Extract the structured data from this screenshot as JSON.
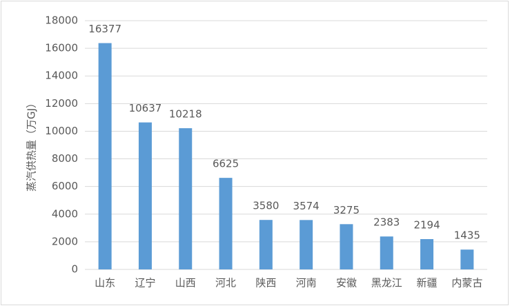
{
  "chart_data": {
    "type": "bar",
    "ylabel": "蒸汽供热量（万GJ）",
    "categories": [
      "山东",
      "辽宁",
      "山西",
      "河北",
      "陕西",
      "河南",
      "安徽",
      "黑龙江",
      "新疆",
      "内蒙古"
    ],
    "values": [
      16377,
      10637,
      10218,
      6625,
      3580,
      3574,
      3275,
      2383,
      2194,
      1435
    ],
    "color": "#5b9bd5",
    "ylim": [
      0,
      18000
    ],
    "yticks": [
      0,
      2000,
      4000,
      6000,
      8000,
      10000,
      12000,
      14000,
      16000,
      18000
    ],
    "grid": true
  }
}
